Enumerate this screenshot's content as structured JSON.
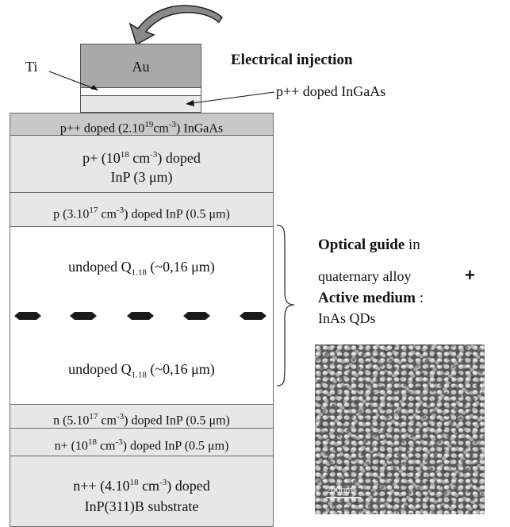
{
  "contact": {
    "au": "Au",
    "ti": "Ti",
    "injection_title": "Electrical injection",
    "contact_layer": "p++ doped InGaAs"
  },
  "layers": [
    {
      "text": "p++ doped (2.10",
      "sup": "19",
      "tail": "cm",
      "sup2": "-3",
      "end": ") InGaAs"
    },
    {
      "line1_a": "p+ (10",
      "line1_sup": "18",
      "line1_b": " cm",
      "line1_sup2": "-3",
      "line1_c": ") doped",
      "line2": "InP (3 μm)"
    },
    {
      "a": "p (3.10",
      "sup": "17",
      "b": " cm",
      "sup2": "-3",
      "c": ") doped InP (0.5 μm)"
    },
    {
      "a": "undoped Q",
      "sub": "1.18",
      "c": " (~0,16 μm)"
    },
    {
      "a": "undoped Q",
      "sub": "1.18",
      "c": " (~0,16 μm)"
    },
    {
      "a": "n (5.10",
      "sup": "17",
      "b": " cm",
      "sup2": "-3",
      "c": ") doped InP (0.5 μm)"
    },
    {
      "a": "n+ (10",
      "sup": "18",
      "b": " cm",
      "sup2": "-3",
      "c": ") doped InP (0.5 μm)"
    },
    {
      "line1_a": "n++ (4.10",
      "line1_sup": "18",
      "line1_b": " cm",
      "line1_sup2": "-3",
      "line1_c": ") doped",
      "line2": "InP(311)B substrate"
    }
  ],
  "guide": {
    "title_bold": "Optical guide",
    "title_rest": " in",
    "line2": "quaternary alloy",
    "plus": "+",
    "active_bold": "Active medium",
    "active_rest": " :",
    "line4": "InAs QDs",
    "scale_label": "200nm"
  },
  "colors": {
    "layer_fill": "#e7e7e7",
    "metal": "#a9a9a9",
    "dots": "#1a1a1a"
  }
}
